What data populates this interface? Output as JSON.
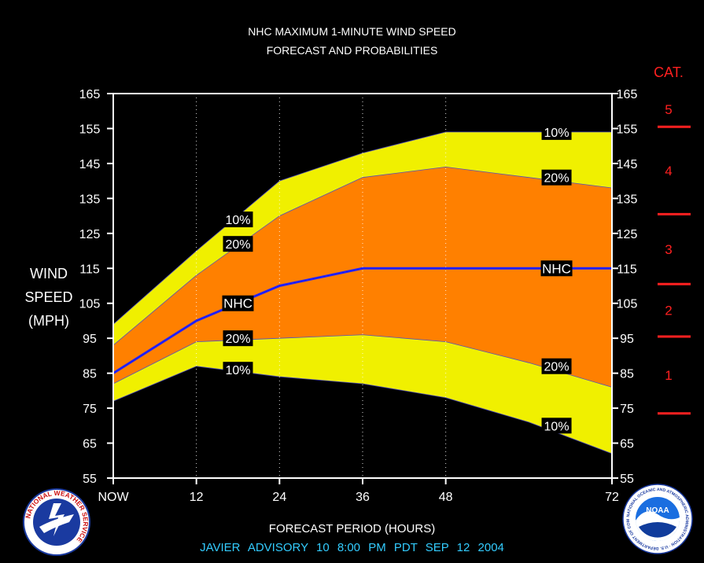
{
  "title_line1": "NHC MAXIMUM 1-MINUTE WIND SPEED",
  "title_line2": "FORECAST AND PROBABILITIES",
  "ylabel_lines": [
    "WIND",
    "SPEED",
    "(MPH)"
  ],
  "xlabel": "FORECAST PERIOD (HOURS)",
  "footer": "JAVIER   ADVISORY  10 8:00  PM  PDT  SEP  12  2004",
  "category_title": "CAT.",
  "logos": {
    "nws_text": "NATIONAL WEATHER SERVICE",
    "noaa_text": "NOAA",
    "noaa_ring_text": "NATIONAL OCEANIC AND ATMOSPHERIC ADMINISTRATION · U.S. DEPARTMENT OF COMMERCE"
  },
  "colors": {
    "band_10": "#f0f000",
    "band_20": "#ff8000",
    "nhc_line": "#2020ff",
    "category": "#ff2020",
    "footer": "#33ccff"
  },
  "chart_data": {
    "type": "area",
    "x": [
      0,
      12,
      24,
      36,
      48,
      72
    ],
    "x_tick_labels": [
      "NOW",
      "12",
      "24",
      "36",
      "48",
      "72"
    ],
    "y_ticks": [
      55,
      65,
      75,
      85,
      95,
      105,
      115,
      125,
      135,
      145,
      155,
      165
    ],
    "ylim": [
      55,
      165
    ],
    "xlim": [
      0,
      72
    ],
    "grid": "vertical dotted at 12, 24, 36, 48",
    "series": [
      {
        "name": "10%",
        "points": [
          [
            0,
            99
          ],
          [
            12,
            120
          ],
          [
            24,
            140
          ],
          [
            36,
            148
          ],
          [
            48,
            154
          ],
          [
            72,
            154
          ]
        ]
      },
      {
        "name": "20%",
        "points": [
          [
            0,
            93
          ],
          [
            12,
            113
          ],
          [
            24,
            130
          ],
          [
            36,
            141
          ],
          [
            48,
            144
          ],
          [
            60,
            141
          ],
          [
            72,
            138
          ]
        ]
      },
      {
        "name": "NHC",
        "points": [
          [
            0,
            85
          ],
          [
            12,
            100
          ],
          [
            24,
            110
          ],
          [
            36,
            115
          ],
          [
            48,
            115
          ],
          [
            72,
            115
          ]
        ]
      },
      {
        "name": "20%",
        "points": [
          [
            0,
            82
          ],
          [
            12,
            94
          ],
          [
            24,
            95
          ],
          [
            36,
            96
          ],
          [
            48,
            94
          ],
          [
            60,
            88
          ],
          [
            72,
            81
          ]
        ]
      },
      {
        "name": "10%",
        "points": [
          [
            0,
            77
          ],
          [
            12,
            87
          ],
          [
            24,
            84
          ],
          [
            36,
            82
          ],
          [
            48,
            78
          ],
          [
            60,
            71
          ],
          [
            72,
            62
          ]
        ]
      }
    ],
    "band_labels": [
      {
        "text": "10%",
        "x": 18,
        "y": 129
      },
      {
        "text": "20%",
        "x": 18,
        "y": 122
      },
      {
        "text": "NHC",
        "x": 18,
        "y": 105
      },
      {
        "text": "20%",
        "x": 18,
        "y": 95
      },
      {
        "text": "10%",
        "x": 18,
        "y": 86
      },
      {
        "text": "10%",
        "x": 64,
        "y": 154
      },
      {
        "text": "20%",
        "x": 64,
        "y": 141
      },
      {
        "text": "NHC",
        "x": 64,
        "y": 115
      },
      {
        "text": "20%",
        "x": 64,
        "y": 87
      },
      {
        "text": "10%",
        "x": 64,
        "y": 70
      }
    ],
    "categories": [
      {
        "label": "1",
        "low": 74,
        "high": 95
      },
      {
        "label": "2",
        "low": 96,
        "high": 110
      },
      {
        "label": "3",
        "low": 111,
        "high": 130
      },
      {
        "label": "4",
        "low": 131,
        "high": 155
      },
      {
        "label": "5",
        "low": 156,
        "high": 165
      }
    ],
    "category_boundaries": [
      73.5,
      95.5,
      110.5,
      130.5,
      155.5
    ]
  }
}
